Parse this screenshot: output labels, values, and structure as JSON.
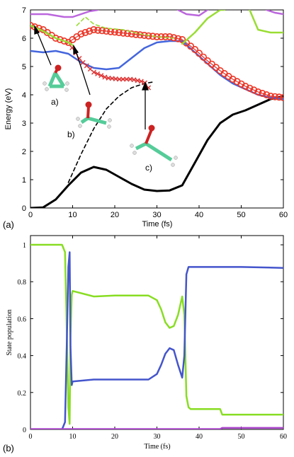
{
  "chart_data": [
    {
      "type": "line",
      "panel_label": "(a)",
      "xlabel": "Time (fs)",
      "ylabel": "Energy (eV)",
      "xlim": [
        0,
        60
      ],
      "ylim": [
        0,
        7
      ],
      "xticks": [
        0,
        10,
        20,
        30,
        40,
        50,
        60
      ],
      "yticks": [
        0,
        1,
        2,
        3,
        4,
        5,
        6,
        7
      ],
      "annotations": [
        "a)",
        "b)",
        "c)"
      ],
      "series": [
        {
          "color": "#000000",
          "style": "solid",
          "x": [
            0,
            3,
            6,
            9,
            12,
            15,
            18,
            21,
            24,
            27,
            30,
            33,
            36,
            39,
            42,
            45,
            48,
            51,
            54,
            57,
            60
          ],
          "y": [
            0,
            0.02,
            0.3,
            0.8,
            1.25,
            1.45,
            1.35,
            1.1,
            0.85,
            0.65,
            0.6,
            0.62,
            0.8,
            1.6,
            2.4,
            3.0,
            3.3,
            3.45,
            3.65,
            3.85,
            3.95
          ]
        },
        {
          "color": "#000000",
          "style": "dashed",
          "x": [
            9,
            12,
            15,
            18,
            21,
            24,
            27,
            29
          ],
          "y": [
            0.9,
            1.9,
            2.8,
            3.5,
            3.95,
            4.25,
            4.4,
            4.45
          ]
        },
        {
          "color": "#4466dd",
          "style": "solid",
          "x": [
            0,
            3,
            6,
            9,
            12,
            15,
            18,
            21,
            24,
            27,
            30,
            33,
            36,
            39,
            42,
            45,
            48,
            51,
            54,
            57,
            60
          ],
          "y": [
            5.55,
            5.5,
            5.55,
            5.45,
            5.15,
            4.95,
            4.9,
            4.95,
            5.3,
            5.65,
            5.85,
            5.9,
            5.9,
            5.5,
            5.1,
            4.7,
            4.4,
            4.2,
            4.0,
            3.9,
            3.85
          ]
        },
        {
          "color": "#dd3333",
          "style": "markers-o",
          "x": [
            0,
            3,
            6,
            9,
            12,
            15,
            18,
            21,
            24,
            27,
            30,
            33,
            36,
            39,
            42,
            45,
            48,
            51,
            54,
            57,
            60
          ],
          "y": [
            6.45,
            6.3,
            6.0,
            5.85,
            6.15,
            6.3,
            6.25,
            6.2,
            6.15,
            6.1,
            6.05,
            6.05,
            5.95,
            5.6,
            5.2,
            4.85,
            4.55,
            4.3,
            4.1,
            3.95,
            3.9
          ]
        },
        {
          "color": "#dd3333",
          "style": "markers-x",
          "x": [
            9,
            12,
            15,
            18,
            21,
            24,
            27,
            28
          ],
          "y": [
            5.85,
            5.2,
            4.8,
            4.6,
            4.55,
            4.55,
            4.45,
            4.25
          ]
        },
        {
          "color": "#99dd33",
          "style": "solid",
          "x": [
            0,
            3,
            6,
            9,
            10
          ],
          "y": [
            6.45,
            6.25,
            6.0,
            5.85,
            5.75
          ]
        },
        {
          "color": "#99dd33",
          "style": "dashed",
          "x": [
            11,
            13,
            15,
            18,
            22,
            26,
            30,
            34
          ],
          "y": [
            6.45,
            6.75,
            6.5,
            6.35,
            6.3,
            6.15,
            6.05,
            6.0
          ]
        },
        {
          "color": "#99dd33",
          "style": "solid",
          "x": [
            36,
            39,
            42,
            45,
            46
          ],
          "y": [
            5.8,
            6.2,
            6.7,
            7.0,
            7.0
          ]
        },
        {
          "color": "#99dd33",
          "style": "solid",
          "x": [
            52,
            54,
            57,
            60
          ],
          "y": [
            7.0,
            6.3,
            6.2,
            6.2
          ]
        },
        {
          "color": "#bb66dd",
          "style": "solid",
          "x": [
            0,
            4,
            8,
            10,
            12,
            14,
            16
          ],
          "y": [
            6.85,
            6.85,
            6.75,
            6.75,
            6.85,
            6.95,
            7.0
          ]
        },
        {
          "color": "#bb66dd",
          "style": "solid",
          "x": [
            35,
            37,
            40,
            42
          ],
          "y": [
            7.0,
            6.85,
            6.8,
            7.0
          ]
        },
        {
          "color": "#bb66dd",
          "style": "solid",
          "x": [
            56,
            58,
            60
          ],
          "y": [
            7.0,
            6.9,
            6.85
          ]
        }
      ]
    },
    {
      "type": "line",
      "panel_label": "(b)",
      "xlabel": "Time (fs)",
      "ylabel": "State population",
      "xlim": [
        0,
        60
      ],
      "ylim": [
        0,
        1.05
      ],
      "xticks": [
        0,
        10,
        20,
        30,
        40,
        50,
        60
      ],
      "yticks": [
        0,
        0.2,
        0.4,
        0.6,
        0.8,
        1
      ],
      "series": [
        {
          "color": "#88dd22",
          "style": "solid",
          "x": [
            0,
            7.5,
            8.2,
            8.6,
            9,
            9.3,
            9.5,
            9.8,
            10,
            15,
            20,
            25,
            28,
            30,
            31,
            32,
            33,
            34,
            35,
            36,
            36.5,
            37,
            37.5,
            38,
            40,
            45,
            45.5,
            50,
            60
          ],
          "y": [
            1,
            1,
            0.96,
            0.55,
            0.12,
            0.03,
            0.5,
            0.73,
            0.75,
            0.72,
            0.725,
            0.725,
            0.725,
            0.7,
            0.65,
            0.58,
            0.55,
            0.56,
            0.62,
            0.72,
            0.62,
            0.18,
            0.12,
            0.11,
            0.11,
            0.11,
            0.08,
            0.08,
            0.08
          ]
        },
        {
          "color": "#4455cc",
          "style": "solid",
          "x": [
            0,
            7.5,
            8.2,
            8.6,
            9,
            9.3,
            9.5,
            9.8,
            10,
            15,
            20,
            25,
            28,
            30,
            31,
            32,
            33,
            34,
            35,
            36,
            36.5,
            37,
            37.5,
            38,
            40,
            45,
            50,
            60
          ],
          "y": [
            0,
            0,
            0.04,
            0.45,
            0.88,
            0.96,
            0.45,
            0.24,
            0.26,
            0.27,
            0.27,
            0.27,
            0.27,
            0.3,
            0.35,
            0.41,
            0.44,
            0.43,
            0.35,
            0.28,
            0.4,
            0.84,
            0.88,
            0.88,
            0.88,
            0.88,
            0.88,
            0.875
          ]
        },
        {
          "color": "#aa44cc",
          "style": "solid",
          "x": [
            0,
            10,
            20,
            30,
            40,
            45,
            45.5,
            50,
            60
          ],
          "y": [
            0.002,
            0.002,
            0.002,
            0.002,
            0.002,
            0.002,
            0.008,
            0.008,
            0.008
          ]
        }
      ]
    }
  ]
}
